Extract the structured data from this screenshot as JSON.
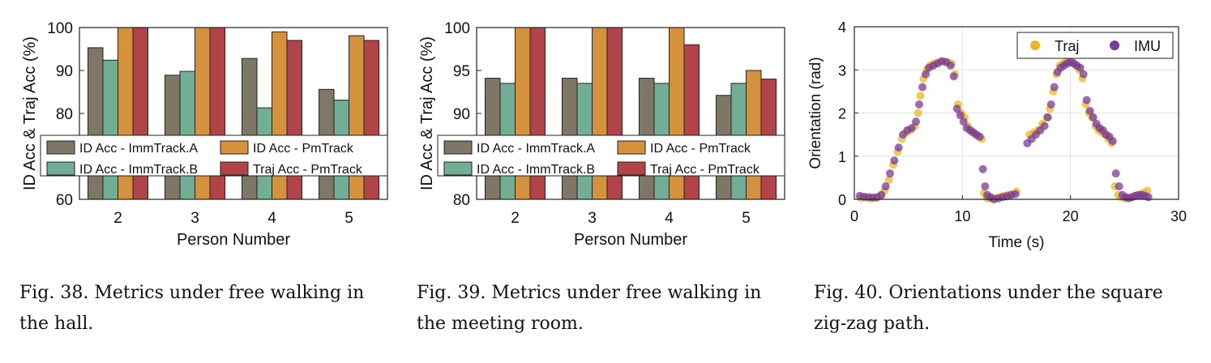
{
  "chart_data": [
    {
      "type": "bar",
      "categories": [
        "2",
        "3",
        "4",
        "5"
      ],
      "series": [
        {
          "name": "ID Acc - ImmTrack.A",
          "values": [
            95.3,
            88.9,
            92.8,
            85.6
          ],
          "color": "#7f7766"
        },
        {
          "name": "ID Acc - ImmTrack.B",
          "values": [
            92.4,
            89.8,
            81.3,
            83.1
          ],
          "color": "#72ae95"
        },
        {
          "name": "ID Acc - PmTrack",
          "values": [
            100,
            100,
            99.0,
            98.1
          ],
          "color": "#d4913e"
        },
        {
          "name": "Traj Acc - PmTrack",
          "values": [
            100,
            100,
            97.0,
            97.0
          ],
          "color": "#b14448"
        }
      ],
      "xlabel": "Person Number",
      "ylabel": "ID Acc & Traj Acc (%)",
      "ylim": [
        60,
        100
      ],
      "yticks": [
        60,
        70,
        80,
        90,
        100
      ],
      "legend": "inside-lower, 2 columns"
    },
    {
      "type": "bar",
      "categories": [
        "2",
        "3",
        "4",
        "5"
      ],
      "series": [
        {
          "name": "ID Acc - ImmTrack.A",
          "values": [
            94.1,
            94.1,
            94.1,
            92.1
          ],
          "color": "#7f7766"
        },
        {
          "name": "ID Acc - ImmTrack.B",
          "values": [
            93.5,
            93.5,
            93.5,
            93.5
          ],
          "color": "#72ae95"
        },
        {
          "name": "ID Acc - PmTrack",
          "values": [
            100,
            100,
            100,
            95.0
          ],
          "color": "#d4913e"
        },
        {
          "name": "Traj Acc - PmTrack",
          "values": [
            100,
            100,
            98.0,
            94.0
          ],
          "color": "#b14448"
        }
      ],
      "xlabel": "Person Number",
      "ylabel": "ID Acc & Traj Acc (%)",
      "ylim": [
        80,
        100
      ],
      "yticks": [
        80,
        85,
        90,
        95,
        100
      ],
      "legend": "inside-lower, 2 columns"
    },
    {
      "type": "scatter",
      "xlabel": "Time (s)",
      "ylabel": "Orientation (rad)",
      "xlim": [
        0,
        30
      ],
      "ylim": [
        0,
        4
      ],
      "xticks": [
        0,
        10,
        20,
        30
      ],
      "yticks": [
        0,
        1,
        2,
        3,
        4
      ],
      "grid": true,
      "legend": "top-right",
      "series": [
        {
          "name": "Traj",
          "color": "#e8b923",
          "x": [
            0.6,
            1.0,
            1.5,
            2.0,
            2.5,
            2.8,
            3.2,
            3.6,
            4.0,
            4.4,
            4.8,
            5.2,
            5.6,
            5.9,
            6.1,
            6.4,
            6.7,
            7.0,
            7.4,
            7.8,
            8.2,
            8.6,
            9.0,
            9.3,
            9.6,
            9.9,
            10.2,
            10.5,
            10.8,
            11.0,
            11.2,
            11.5,
            11.8,
            12.0,
            12.2,
            12.4,
            12.7,
            13.0,
            13.4,
            13.8,
            14.2,
            14.6,
            15.0,
            16.2,
            16.6,
            17.0,
            17.4,
            17.8,
            18.1,
            18.4,
            18.7,
            19.0,
            19.3,
            19.6,
            19.9,
            20.2,
            20.5,
            20.8,
            21.1,
            21.4,
            21.7,
            22.0,
            22.3,
            22.6,
            22.9,
            23.2,
            23.5,
            23.8,
            24.1,
            24.4,
            24.7,
            25.0,
            25.3,
            25.6,
            25.9,
            26.2,
            26.5,
            26.8,
            27.1
          ],
          "y": [
            0.03,
            0.04,
            0.02,
            0.03,
            0.1,
            0.2,
            0.45,
            0.8,
            1.1,
            1.4,
            1.55,
            1.6,
            1.7,
            2.0,
            2.4,
            2.8,
            3.0,
            3.1,
            3.15,
            3.18,
            3.2,
            3.18,
            3.15,
            2.9,
            2.2,
            2.0,
            1.9,
            1.7,
            1.6,
            1.55,
            1.5,
            1.45,
            1.4,
            0.15,
            0.05,
            0.02,
            0.03,
            0.03,
            0.05,
            0.08,
            0.1,
            0.12,
            0.18,
            1.5,
            1.55,
            1.6,
            1.75,
            1.9,
            2.1,
            2.5,
            2.9,
            3.1,
            3.15,
            3.18,
            3.2,
            3.18,
            3.1,
            3.0,
            2.8,
            2.2,
            2.0,
            1.9,
            1.7,
            1.6,
            1.55,
            1.5,
            1.4,
            1.3,
            0.3,
            0.1,
            0.05,
            0.03,
            0.02,
            0.05,
            0.08,
            0.1,
            0.12,
            0.15,
            0.2
          ]
        },
        {
          "name": "IMU",
          "color": "#7b3a98",
          "x": [
            0.5,
            0.9,
            1.3,
            1.7,
            2.1,
            2.5,
            2.9,
            3.3,
            3.7,
            4.1,
            4.5,
            4.9,
            5.3,
            5.7,
            6.0,
            6.3,
            6.6,
            6.9,
            7.3,
            7.7,
            8.1,
            8.5,
            8.9,
            9.2,
            9.5,
            9.8,
            10.1,
            10.4,
            10.7,
            11.0,
            11.3,
            11.6,
            11.9,
            12.1,
            12.3,
            12.6,
            12.9,
            13.3,
            13.7,
            14.1,
            14.5,
            14.9,
            16.0,
            16.4,
            16.8,
            17.2,
            17.6,
            17.9,
            18.2,
            18.5,
            18.8,
            19.1,
            19.4,
            19.7,
            20.0,
            20.3,
            20.6,
            20.9,
            21.2,
            21.5,
            21.8,
            22.1,
            22.4,
            22.7,
            23.0,
            23.3,
            23.6,
            23.9,
            24.2,
            24.5,
            24.8,
            25.1,
            25.4,
            25.7,
            26.0,
            26.3,
            26.6,
            26.9,
            27.2
          ],
          "y": [
            0.08,
            0.06,
            0.05,
            0.04,
            0.05,
            0.1,
            0.3,
            0.6,
            0.9,
            1.2,
            1.5,
            1.6,
            1.65,
            1.8,
            2.2,
            2.6,
            2.9,
            3.05,
            3.1,
            3.15,
            3.2,
            3.18,
            3.1,
            2.85,
            2.1,
            1.95,
            1.8,
            1.65,
            1.6,
            1.55,
            1.5,
            1.45,
            0.7,
            0.3,
            0.1,
            0.05,
            0.0,
            0.02,
            0.05,
            0.07,
            0.1,
            0.12,
            1.3,
            1.4,
            1.5,
            1.6,
            1.7,
            1.9,
            2.2,
            2.6,
            2.95,
            3.05,
            3.1,
            3.15,
            3.18,
            3.15,
            3.1,
            3.05,
            2.9,
            2.3,
            2.05,
            1.9,
            1.75,
            1.65,
            1.6,
            1.5,
            1.45,
            1.35,
            0.6,
            0.3,
            0.1,
            0.05,
            0.03,
            0.05,
            0.08,
            0.1,
            0.1,
            0.08,
            0.05
          ]
        }
      ]
    }
  ],
  "captions": [
    {
      "line1": "Fig. 38.  Metrics under free walking in",
      "line2": "the hall."
    },
    {
      "line1": "Fig. 39.  Metrics under free walking in",
      "line2": "the meeting room."
    },
    {
      "line1": "Fig. 40.  Orientations under the square",
      "line2": "zig-zag path."
    }
  ]
}
